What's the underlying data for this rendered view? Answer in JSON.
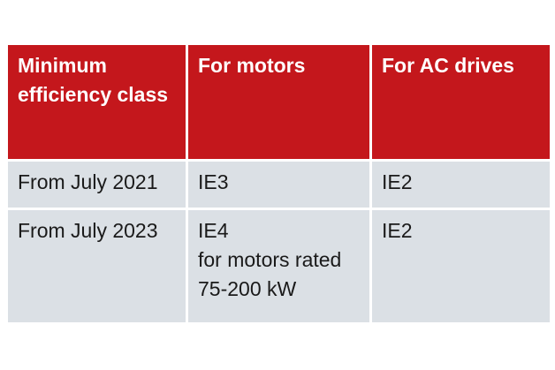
{
  "colors": {
    "header_bg": "#c4171c",
    "header_text": "#ffffff",
    "row_bg": "#dbe0e5",
    "body_text": "#1a1a1a",
    "page_bg": "#ffffff"
  },
  "table": {
    "headers": [
      "Minimum efficiency class",
      "For motors",
      "For AC drives"
    ],
    "rows": [
      {
        "cells": [
          "From July 2021",
          "IE3",
          "IE2"
        ]
      },
      {
        "cells": [
          "From July 2023",
          "IE4\nfor motors rated\n75-200 kW",
          "IE2"
        ]
      }
    ]
  }
}
